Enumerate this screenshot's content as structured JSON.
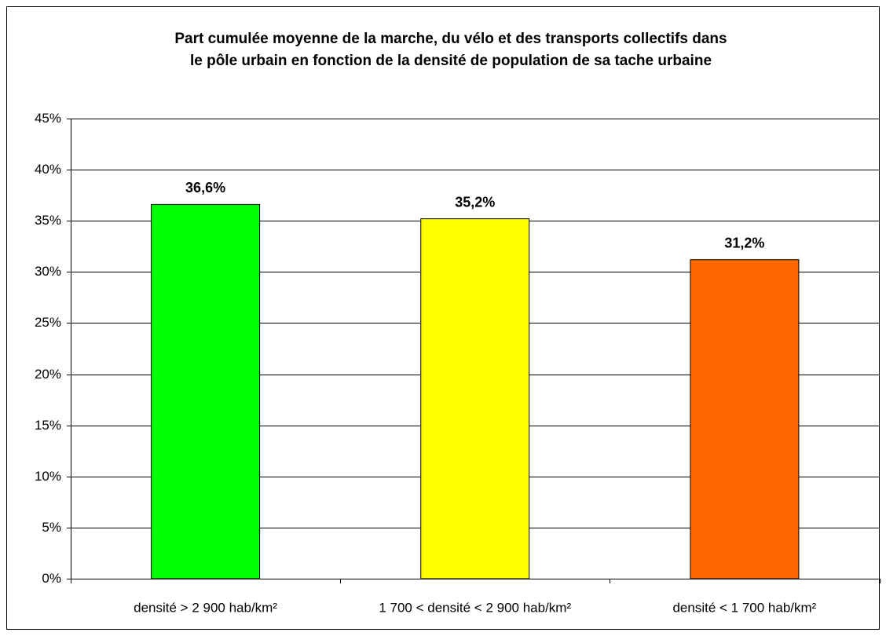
{
  "chart_data": {
    "type": "bar",
    "title": [
      "Part cumulée moyenne de la marche, du vélo et des transports collectifs dans",
      "le pôle urbain en fonction de la densité de population de sa tache urbaine"
    ],
    "categories": [
      "densité > 2 900 hab/km²",
      "1 700 < densité < 2 900 hab/km²",
      "densité < 1 700 hab/km²"
    ],
    "values": [
      36.6,
      35.2,
      31.2
    ],
    "value_labels": [
      "36,6%",
      "35,2%",
      "31,2%"
    ],
    "colors": [
      "#00ff00",
      "#ffff00",
      "#ff6600"
    ],
    "ylim": [
      0,
      45
    ],
    "yticks": [
      {
        "value": 0,
        "label": "0%"
      },
      {
        "value": 5,
        "label": "5%"
      },
      {
        "value": 10,
        "label": "10%"
      },
      {
        "value": 15,
        "label": "15%"
      },
      {
        "value": 20,
        "label": "20%"
      },
      {
        "value": 25,
        "label": "25%"
      },
      {
        "value": 30,
        "label": "30%"
      },
      {
        "value": 35,
        "label": "35%"
      },
      {
        "value": 40,
        "label": "40%"
      },
      {
        "value": 45,
        "label": "45%"
      }
    ],
    "grid": true
  }
}
